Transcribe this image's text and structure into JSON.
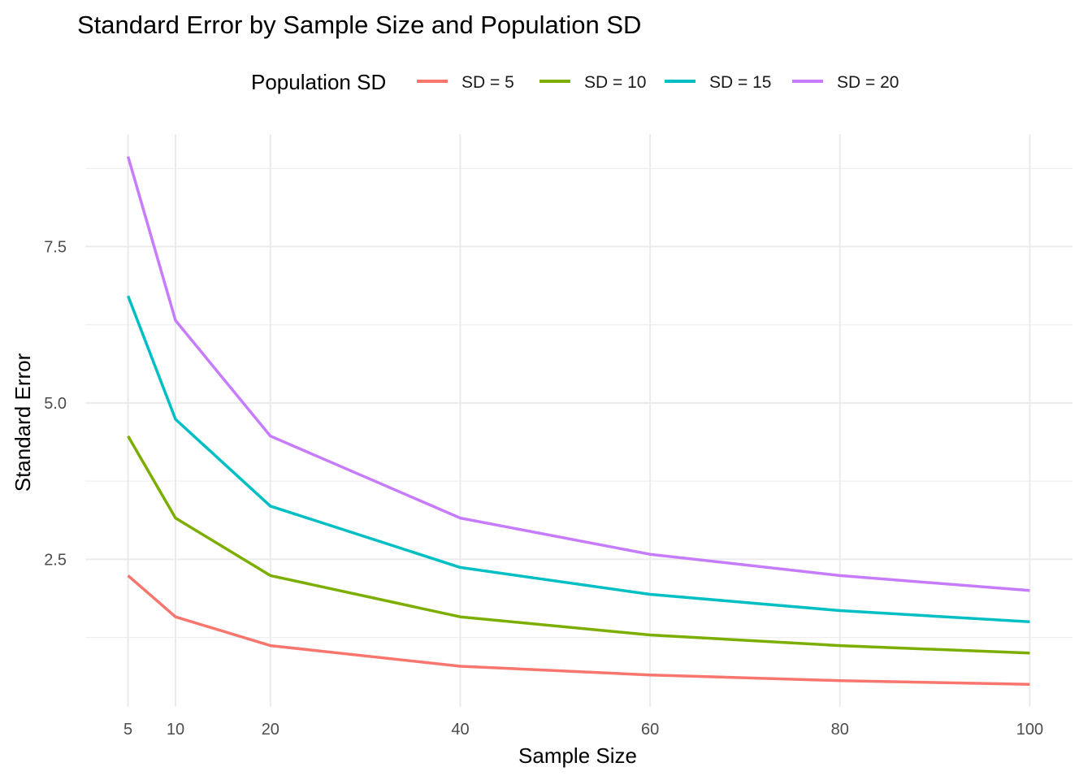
{
  "chart_data": {
    "type": "line",
    "title": "Standard Error by Sample Size and Population SD",
    "xlabel": "Sample Size",
    "ylabel": "Standard Error",
    "x": [
      5,
      10,
      20,
      40,
      60,
      80,
      100
    ],
    "xticks": [
      "5",
      "10",
      "20",
      "40",
      "60",
      "80",
      "100"
    ],
    "yticks": [
      "2.5",
      "5.0",
      "7.5"
    ],
    "xlim": [
      0.5,
      104.5
    ],
    "ylim": [
      0.14,
      9.3
    ],
    "grid": true,
    "legend": {
      "title": "Population SD",
      "position": "top"
    },
    "series": [
      {
        "name": "SD = 5",
        "color": "#F8766D",
        "values": [
          2.24,
          1.58,
          1.12,
          0.79,
          0.65,
          0.56,
          0.5
        ]
      },
      {
        "name": "SD = 10",
        "color": "#7CAE00",
        "values": [
          4.47,
          3.16,
          2.24,
          1.58,
          1.29,
          1.12,
          1.0
        ]
      },
      {
        "name": "SD = 15",
        "color": "#00BFC4",
        "values": [
          6.71,
          4.74,
          3.35,
          2.37,
          1.94,
          1.68,
          1.5
        ]
      },
      {
        "name": "SD = 20",
        "color": "#C77CFF",
        "values": [
          8.94,
          6.32,
          4.47,
          3.16,
          2.58,
          2.24,
          2.0
        ]
      }
    ]
  }
}
